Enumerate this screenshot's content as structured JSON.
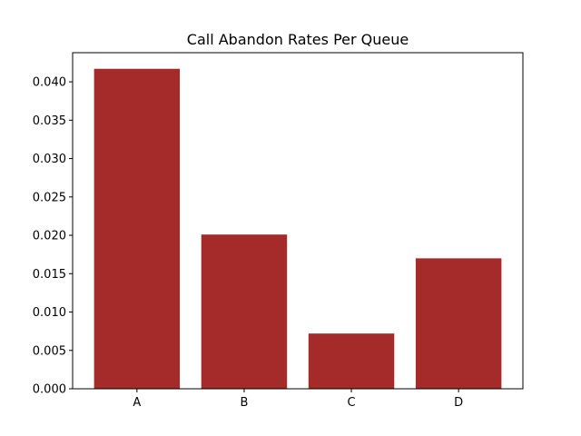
{
  "chart_data": {
    "type": "bar",
    "title": "Call Abandon Rates Per Queue",
    "xlabel": "",
    "ylabel": "",
    "categories": [
      "A",
      "B",
      "C",
      "D"
    ],
    "values": [
      0.0417,
      0.0201,
      0.0072,
      0.017
    ],
    "ylim": [
      0,
      0.0438
    ],
    "yticks": [
      0.0,
      0.005,
      0.01,
      0.015,
      0.02,
      0.025,
      0.03,
      0.035,
      0.04
    ],
    "ytick_labels": [
      "0.000",
      "0.005",
      "0.010",
      "0.015",
      "0.020",
      "0.025",
      "0.030",
      "0.035",
      "0.040"
    ],
    "bar_color": "#a52a2a",
    "grid": false,
    "legend": "none"
  }
}
